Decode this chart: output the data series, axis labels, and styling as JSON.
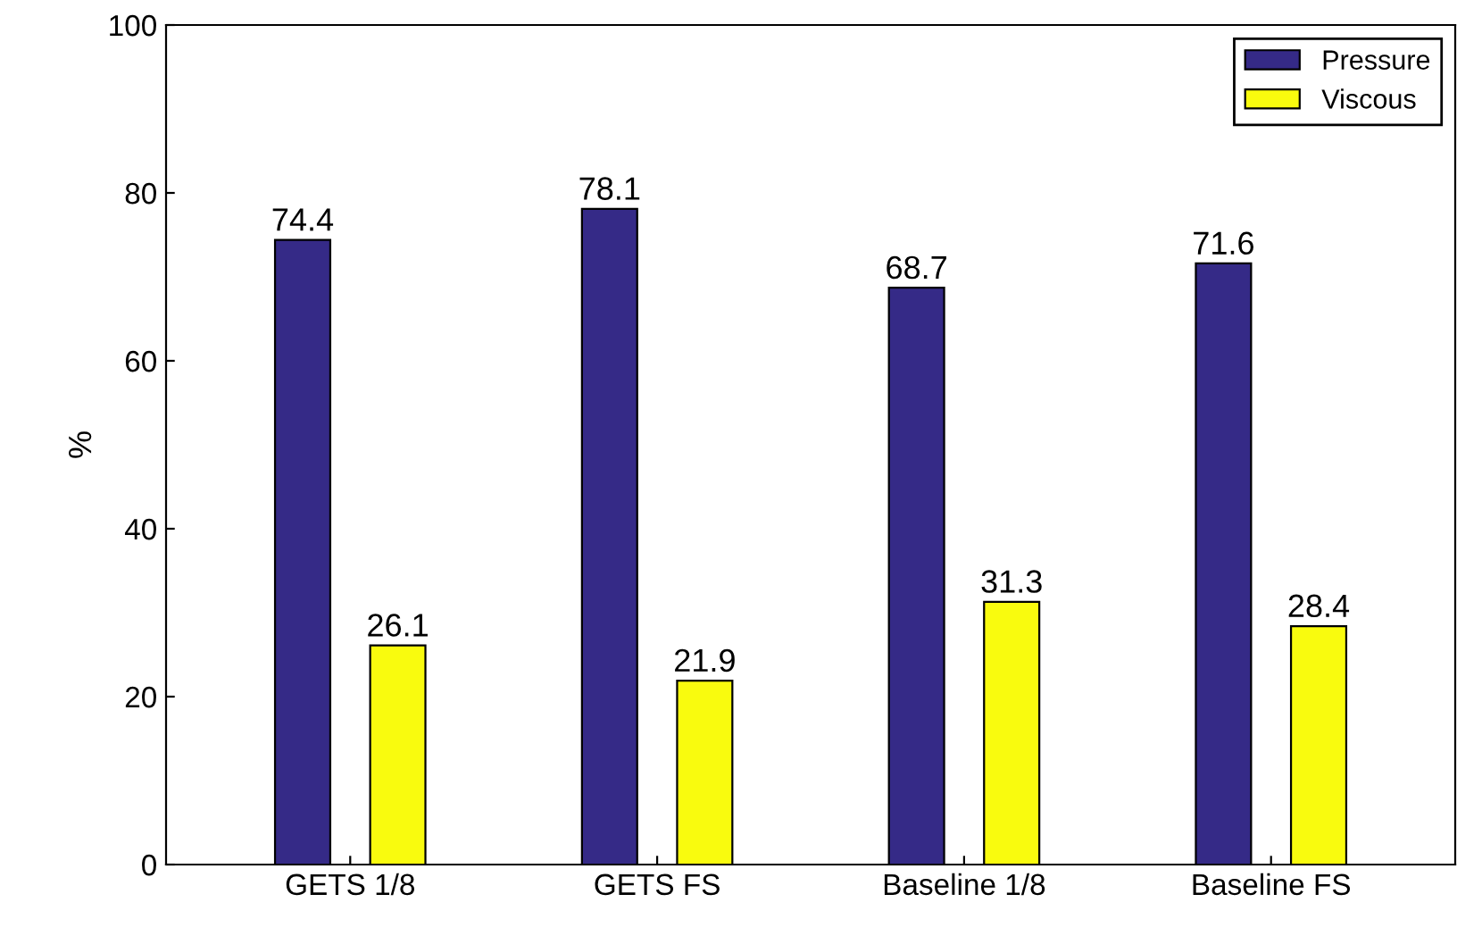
{
  "chart_data": {
    "type": "bar",
    "ylabel": "%",
    "categories": [
      "GETS 1/8",
      "GETS FS",
      "Baseline 1/8",
      "Baseline FS"
    ],
    "series": [
      {
        "name": "Pressure",
        "color": "#352a87",
        "values": [
          74.4,
          78.1,
          68.7,
          71.6
        ]
      },
      {
        "name": "Viscous",
        "color": "#f9fb0e",
        "values": [
          26.1,
          21.9,
          31.3,
          28.4
        ]
      }
    ],
    "ylim": [
      0,
      100
    ],
    "yticks": [
      0,
      20,
      40,
      60,
      80,
      100
    ],
    "grid": false,
    "legend": "top right",
    "data_labels": true
  }
}
